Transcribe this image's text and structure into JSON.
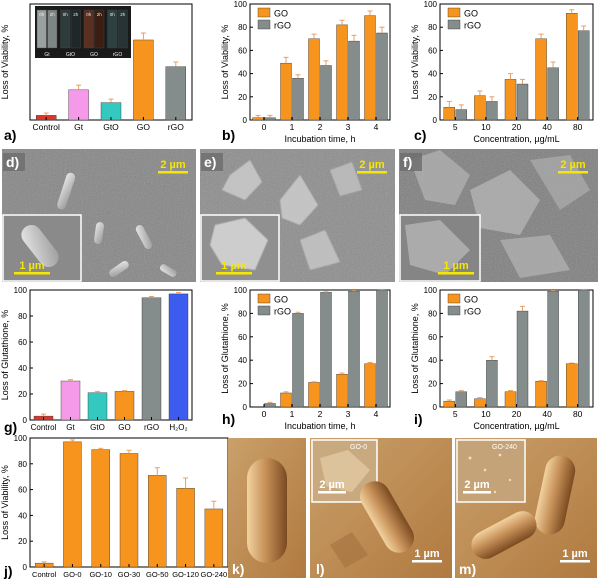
{
  "panels": {
    "a": "a)",
    "b": "b)",
    "c": "c)",
    "d": "d)",
    "e": "e)",
    "f": "f)",
    "g": "g)",
    "h": "h)",
    "i": "i)",
    "j": "j)",
    "k": "k)",
    "l": "l)",
    "m": "m)"
  },
  "scalebars": {
    "big": "2 µm",
    "small": "1 µm"
  },
  "insets": {
    "l_label": "GO-0",
    "m_label": "GO-240"
  },
  "vial_inset": {
    "time_labels": [
      "0h",
      "2h"
    ],
    "vial_labels": [
      "Gt",
      "GtO",
      "GO",
      "rGO"
    ]
  },
  "colors": {
    "orange": "#f7941d",
    "gray": "#848c8c",
    "red": "#d9372b",
    "pink": "#f59ae8",
    "teal": "#33c9c0",
    "blue": "#3c5cf0",
    "error": "#e8a060"
  },
  "chart_data": [
    {
      "id": "a",
      "type": "bar",
      "categories": [
        "Control",
        "Gt",
        "GtO",
        "GO",
        "rGO"
      ],
      "values": [
        4,
        26,
        15,
        69,
        46
      ],
      "errors": [
        2,
        4,
        3,
        6,
        4
      ],
      "bar_colors": [
        "#d9372b",
        "#f59ae8",
        "#33c9c0",
        "#f7941d",
        "#848c8c"
      ],
      "ylabel": "Loss of Viability, %",
      "xlabel": "",
      "ylim": [
        0,
        100
      ],
      "yticks": [],
      "grid": false
    },
    {
      "id": "b",
      "type": "bar",
      "categories": [
        "0",
        "1",
        "2",
        "3",
        "4"
      ],
      "series": [
        {
          "name": "GO",
          "values": [
            2,
            49,
            70,
            82,
            90
          ],
          "errors": [
            2,
            5,
            4,
            4,
            4
          ]
        },
        {
          "name": "rGO",
          "values": [
            2,
            36,
            47,
            68,
            75
          ],
          "errors": [
            2,
            3,
            4,
            5,
            5
          ]
        }
      ],
      "xlabel": "Incubation time, h",
      "ylabel": "Loss of Viability, %",
      "ylim": [
        0,
        100
      ],
      "yticks": [
        "0",
        "20",
        "40",
        "60",
        "80",
        "100"
      ],
      "legend": "top-left",
      "grid": false
    },
    {
      "id": "c",
      "type": "bar",
      "categories": [
        "5",
        "10",
        "20",
        "40",
        "80"
      ],
      "series": [
        {
          "name": "GO",
          "values": [
            11,
            21,
            35,
            70,
            92
          ],
          "errors": [
            5,
            4,
            5,
            4,
            3
          ]
        },
        {
          "name": "rGO",
          "values": [
            9,
            16,
            31,
            45,
            77
          ],
          "errors": [
            4,
            4,
            4,
            5,
            4
          ]
        }
      ],
      "xlabel": "Concentration, µg/mL",
      "ylabel": "Loss of Viability, %",
      "ylim": [
        0,
        100
      ],
      "yticks": [
        "0",
        "20",
        "40",
        "60",
        "80",
        "100"
      ],
      "legend": "top-left",
      "grid": false
    },
    {
      "id": "g",
      "type": "bar",
      "categories": [
        "Control",
        "Gt",
        "GtO",
        "GO",
        "rGO",
        "H₂O₂"
      ],
      "values": [
        3,
        30,
        21,
        22,
        94,
        97
      ],
      "errors": [
        1.5,
        1,
        1,
        0.6,
        1,
        1
      ],
      "bar_colors": [
        "#d9372b",
        "#f59ae8",
        "#33c9c0",
        "#f7941d",
        "#848c8c",
        "#3c5cf0"
      ],
      "ylabel": "Loss of Glutathione, %",
      "xlabel": "",
      "ylim": [
        0,
        100
      ],
      "yticks": [
        "0",
        "20",
        "40",
        "60",
        "80",
        "100"
      ],
      "grid": false
    },
    {
      "id": "h",
      "type": "bar",
      "categories": [
        "0",
        "1",
        "2",
        "3",
        "4"
      ],
      "series": [
        {
          "name": "GO",
          "values": [
            0,
            12,
            21,
            28,
            37
          ],
          "errors": [
            0,
            1,
            0.5,
            1,
            1
          ]
        },
        {
          "name": "rGO",
          "values": [
            3,
            80,
            98,
            99,
            100
          ],
          "errors": [
            1,
            1,
            0.5,
            0.5,
            0.5
          ]
        }
      ],
      "xlabel": "Incubation time, h",
      "ylabel": "Loss of Glutathione, %",
      "ylim": [
        0,
        100
      ],
      "yticks": [
        "0",
        "20",
        "40",
        "60",
        "80",
        "100"
      ],
      "legend": "top-left",
      "grid": false
    },
    {
      "id": "i",
      "type": "bar",
      "categories": [
        "5",
        "10",
        "20",
        "40",
        "80"
      ],
      "series": [
        {
          "name": "GO",
          "values": [
            5,
            7,
            13,
            22,
            37
          ],
          "errors": [
            1,
            1,
            1,
            0.5,
            0.5
          ]
        },
        {
          "name": "rGO",
          "values": [
            13,
            40,
            82,
            99,
            100
          ],
          "errors": [
            1,
            3,
            4,
            0.5,
            0.5
          ]
        }
      ],
      "xlabel": "Concentration, µg/mL",
      "ylabel": "Loss of Glutathione, %",
      "ylim": [
        0,
        100
      ],
      "yticks": [
        "0",
        "20",
        "40",
        "60",
        "80",
        "100"
      ],
      "legend": "top-left",
      "grid": false
    },
    {
      "id": "j",
      "type": "bar",
      "categories": [
        "Control",
        "GO-0",
        "GO-10",
        "GO-30",
        "GO-50",
        "GO-120",
        "GO-240"
      ],
      "values": [
        3,
        97,
        91,
        88,
        71,
        61,
        45
      ],
      "errors": [
        1,
        1.5,
        1,
        2.5,
        6,
        8,
        6
      ],
      "bar_colors": [
        "#f7941d",
        "#f7941d",
        "#f7941d",
        "#f7941d",
        "#f7941d",
        "#f7941d",
        "#f7941d"
      ],
      "ylabel": "Loss of Viability, %",
      "xlabel": "",
      "ylim": [
        0,
        100
      ],
      "yticks": [
        "0",
        "20",
        "40",
        "60",
        "80",
        "100"
      ],
      "grid": false
    }
  ]
}
